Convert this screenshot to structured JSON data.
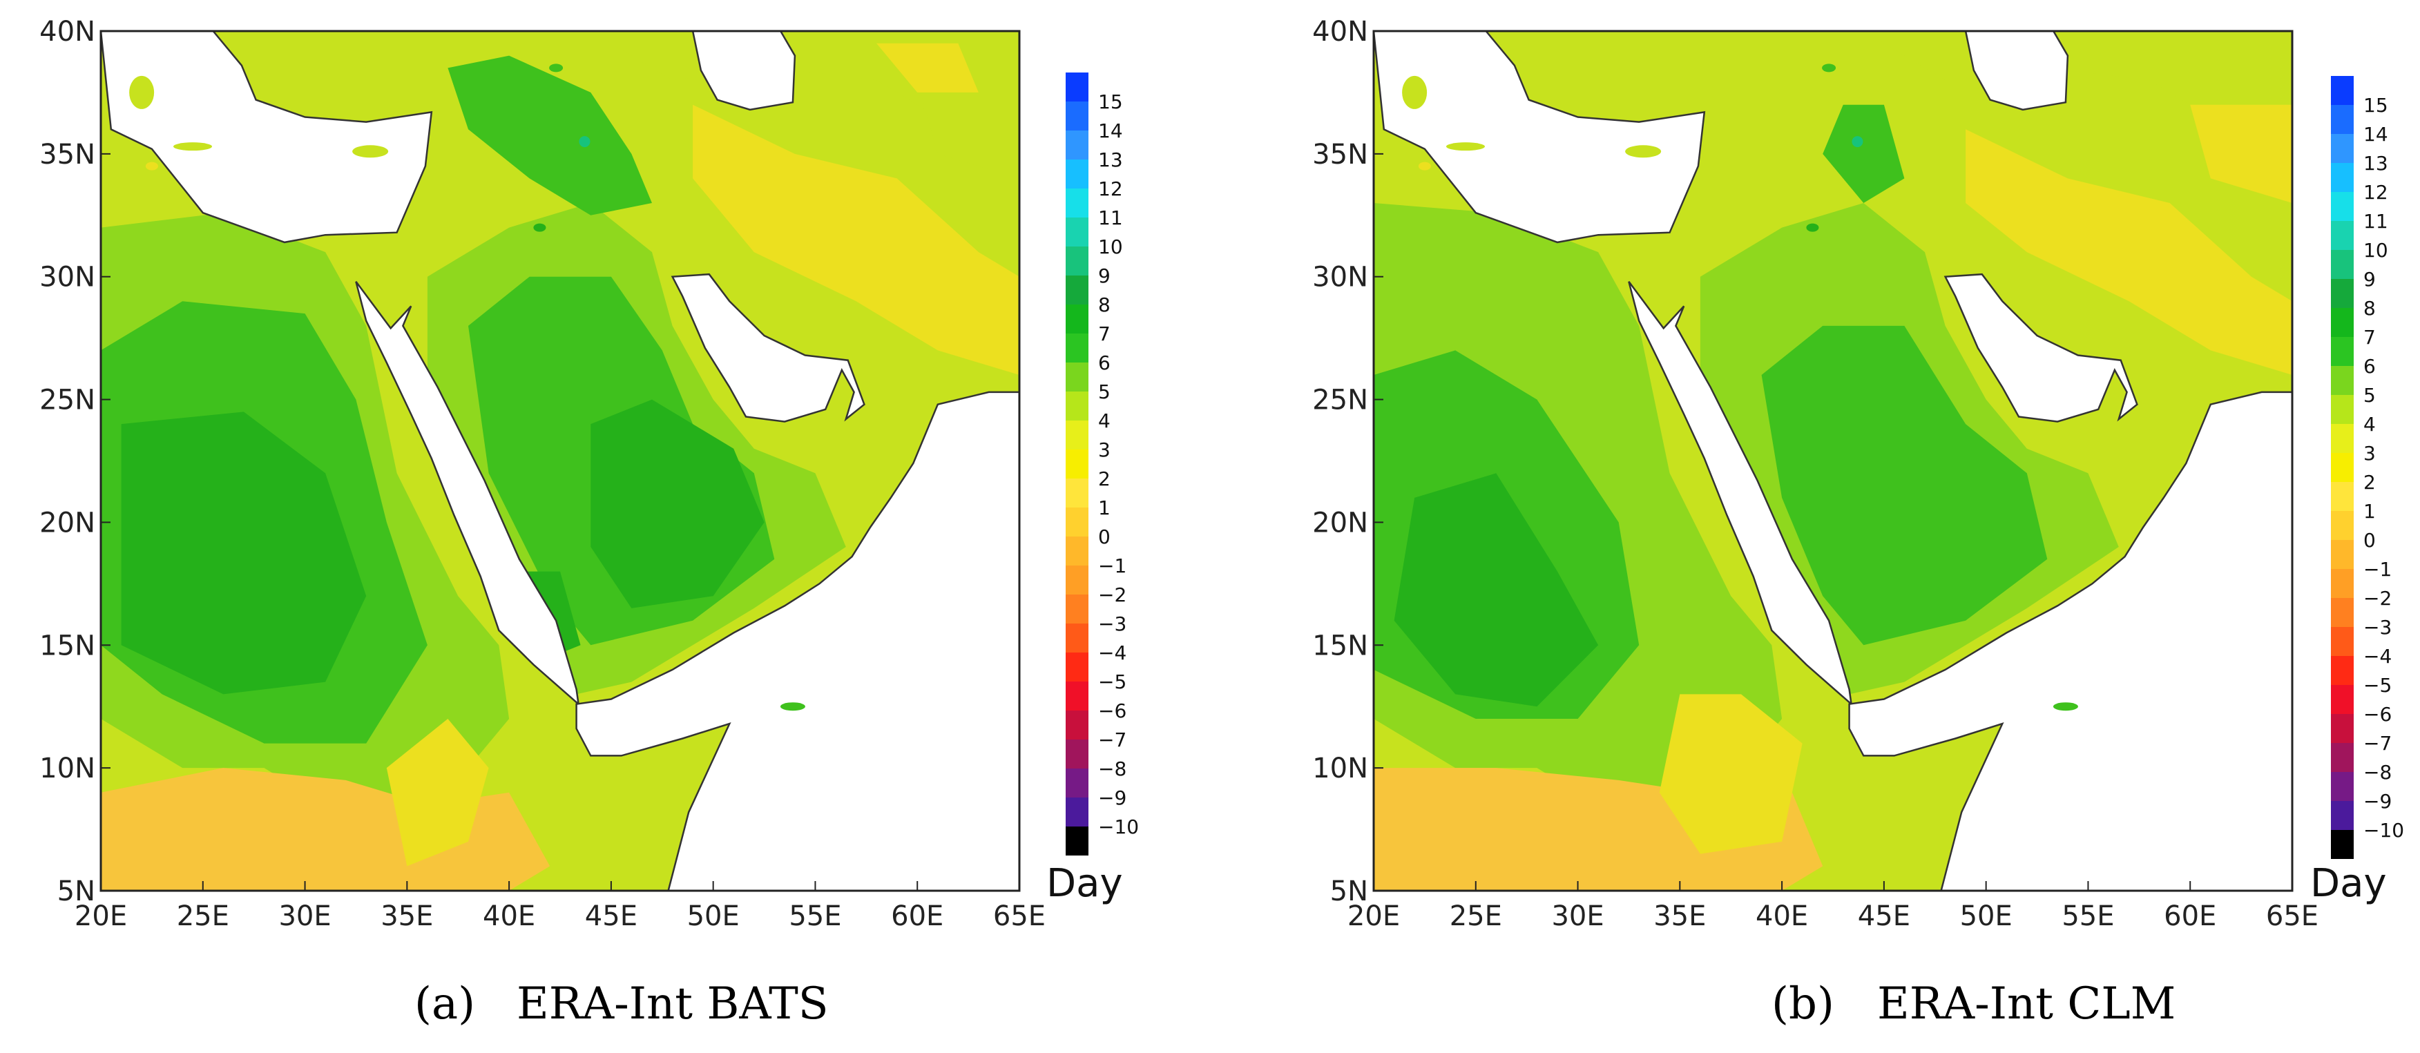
{
  "panels": [
    {
      "label": "(a)",
      "title": "ERA-Int BATS"
    },
    {
      "label": "(b)",
      "title": "ERA-Int CLM"
    }
  ],
  "axes": {
    "lon_ticks": [
      "20E",
      "25E",
      "30E",
      "35E",
      "40E",
      "45E",
      "50E",
      "55E",
      "60E",
      "65E"
    ],
    "lat_ticks": [
      "40N",
      "35N",
      "30N",
      "25N",
      "20N",
      "15N",
      "10N",
      "5N"
    ]
  },
  "colorbar": {
    "unit": "Day",
    "levels": [
      "15",
      "14",
      "13",
      "12",
      "11",
      "10",
      "9",
      "8",
      "7",
      "6",
      "5",
      "4",
      "3",
      "2",
      "1",
      "0",
      "−1",
      "−2",
      "−3",
      "−4",
      "−5",
      "−6",
      "−7",
      "−8",
      "−9",
      "−10"
    ],
    "colors": [
      "#0a3cff",
      "#1a6cff",
      "#2f96ff",
      "#17bfff",
      "#17dfe9",
      "#19d3b0",
      "#18c37c",
      "#15a93b",
      "#14b71c",
      "#2bc522",
      "#7ad61e",
      "#b6e61a",
      "#e7ef1a",
      "#f7ee00",
      "#ffe53b",
      "#ffd12e",
      "#ffb82a",
      "#ff9f25",
      "#ff8020",
      "#ff5a18",
      "#ff2a14",
      "#f01028",
      "#c8103c",
      "#a0155c",
      "#761a86",
      "#4b1a9c"
    ],
    "bottom_color": "#000000"
  },
  "palette": {
    "land_yellow": "#ece01f",
    "land_yellowgreen": "#c7e21e",
    "land_lightgreen": "#8fd81e",
    "land_green": "#3fc11d",
    "land_darkgreen": "#25b11a",
    "land_orange": "#f7c53c",
    "water": "#ffffff",
    "coast": "#333333"
  }
}
